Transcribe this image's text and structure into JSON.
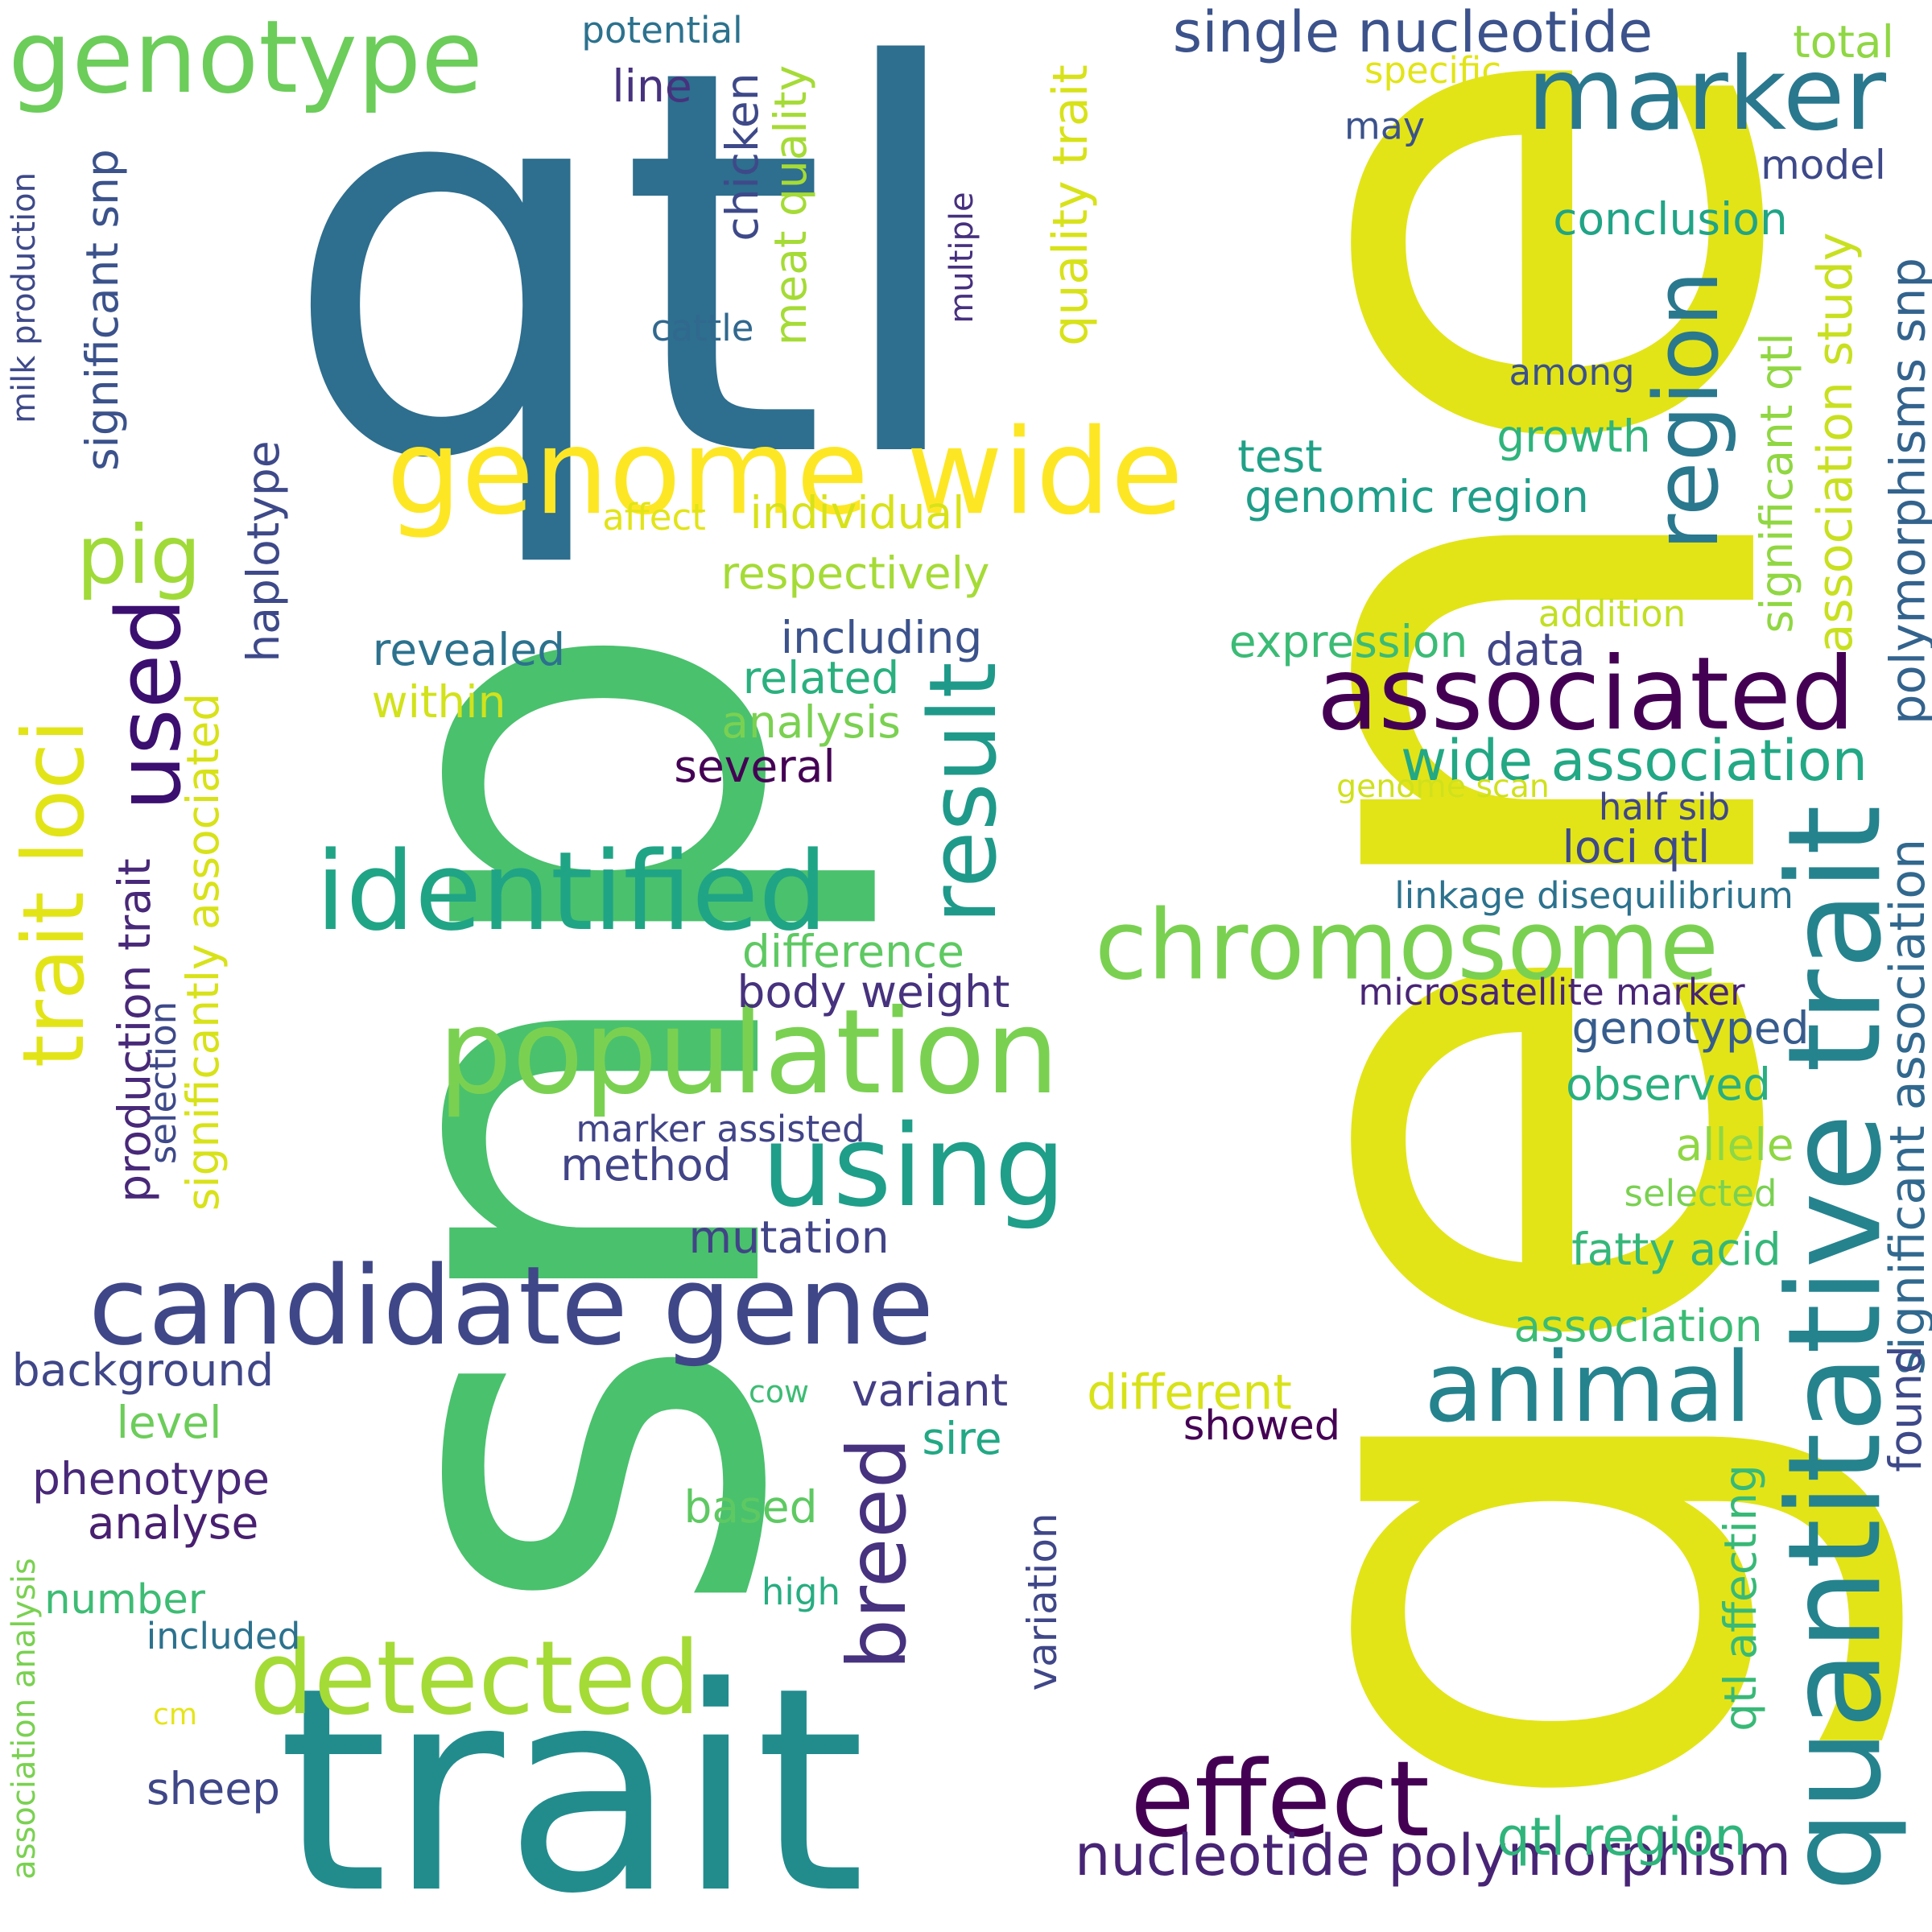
{
  "words": [
    {
      "text": "gene",
      "color": "#e2e418"
    },
    {
      "text": "snp",
      "color": "#4ac16d"
    },
    {
      "text": "qtl",
      "color": "#2e6e8e"
    },
    {
      "text": "trait",
      "color": "#228c8d"
    },
    {
      "text": "genome wide",
      "color": "#fde725"
    },
    {
      "text": "genotype",
      "color": "#6ccd5a"
    },
    {
      "text": "marker",
      "color": "#2a788e"
    },
    {
      "text": "associated",
      "color": "#440154"
    },
    {
      "text": "region",
      "color": "#2a788e"
    },
    {
      "text": "quantitative trait",
      "color": "#25838e"
    },
    {
      "text": "identified",
      "color": "#20a486"
    },
    {
      "text": "population",
      "color": "#7ad151"
    },
    {
      "text": "candidate gene",
      "color": "#3f4788"
    },
    {
      "text": "chromosome",
      "color": "#7ad151"
    },
    {
      "text": "using",
      "color": "#1f9e89"
    },
    {
      "text": "result",
      "color": "#1f9a8a"
    },
    {
      "text": "animal",
      "color": "#25838e"
    },
    {
      "text": "effect",
      "color": "#440154"
    },
    {
      "text": "detected",
      "color": "#a5db36"
    },
    {
      "text": "trait loci",
      "color": "#e2e418"
    },
    {
      "text": "pig",
      "color": "#a0da39"
    },
    {
      "text": "used",
      "color": "#3b0f70"
    },
    {
      "text": "breed",
      "color": "#46327e"
    },
    {
      "text": "single nucleotide",
      "color": "#3b528b"
    },
    {
      "text": "nucleotide polymorphism",
      "color": "#482475"
    },
    {
      "text": "wide association",
      "color": "#22a884"
    },
    {
      "text": "qtl region",
      "color": "#2fb47c"
    },
    {
      "text": "significant association",
      "color": "#31688e"
    },
    {
      "text": "polymorphisms snp",
      "color": "#33638d"
    },
    {
      "text": "association study",
      "color": "#c8e020"
    },
    {
      "text": "significant qtl",
      "color": "#90d743"
    },
    {
      "text": "qtl affecting",
      "color": "#38b977"
    },
    {
      "text": "found",
      "color": "#3e4989"
    },
    {
      "text": "quality trait",
      "color": "#d8e219"
    },
    {
      "text": "meat quality",
      "color": "#a5db36"
    },
    {
      "text": "chicken",
      "color": "#3e4989"
    },
    {
      "text": "significant snp",
      "color": "#3b528b"
    },
    {
      "text": "milk production",
      "color": "#3e4989"
    },
    {
      "text": "haplotype",
      "color": "#3e4989"
    },
    {
      "text": "production trait",
      "color": "#482878"
    },
    {
      "text": "significantly associated",
      "color": "#d8e219"
    },
    {
      "text": "selection",
      "color": "#3e4989"
    },
    {
      "text": "multiple",
      "color": "#46307e"
    },
    {
      "text": "variation",
      "color": "#3f4788"
    },
    {
      "text": "association analysis",
      "color": "#7ad151"
    },
    {
      "text": "potential",
      "color": "#2c728e"
    },
    {
      "text": "line",
      "color": "#46327e"
    },
    {
      "text": "cattle",
      "color": "#31688e"
    },
    {
      "text": "may",
      "color": "#3b528b"
    },
    {
      "text": "total",
      "color": "#8fd744"
    },
    {
      "text": "specific",
      "color": "#e2e418"
    },
    {
      "text": "model",
      "color": "#3e4989"
    },
    {
      "text": "conclusion",
      "color": "#20a486"
    },
    {
      "text": "among",
      "color": "#3b528b"
    },
    {
      "text": "growth",
      "color": "#2fb47c"
    },
    {
      "text": "test",
      "color": "#1fa187"
    },
    {
      "text": "genomic region",
      "color": "#1f9e89"
    },
    {
      "text": "affect",
      "color": "#e2e418"
    },
    {
      "text": "individual",
      "color": "#d8e219"
    },
    {
      "text": "respectively",
      "color": "#a5db36"
    },
    {
      "text": "addition",
      "color": "#c2df23"
    },
    {
      "text": "revealed",
      "color": "#2c728e"
    },
    {
      "text": "including",
      "color": "#3b528b"
    },
    {
      "text": "expression",
      "color": "#3bbb75"
    },
    {
      "text": "data",
      "color": "#404688"
    },
    {
      "text": "within",
      "color": "#d2e21b"
    },
    {
      "text": "related",
      "color": "#2ab07f"
    },
    {
      "text": "analysis",
      "color": "#7ad151"
    },
    {
      "text": "several",
      "color": "#440154"
    },
    {
      "text": "genome scan",
      "color": "#d0e11c"
    },
    {
      "text": "half sib",
      "color": "#3f4788"
    },
    {
      "text": "loci qtl",
      "color": "#3e4989"
    },
    {
      "text": "linkage disequilibrium",
      "color": "#2c728e"
    },
    {
      "text": "difference",
      "color": "#5ec962"
    },
    {
      "text": "body weight",
      "color": "#46327e"
    },
    {
      "text": "microsatellite marker",
      "color": "#482475"
    },
    {
      "text": "genotyped",
      "color": "#365c8d"
    },
    {
      "text": "observed",
      "color": "#29af7f"
    },
    {
      "text": "marker assisted",
      "color": "#414487"
    },
    {
      "text": "allele",
      "color": "#8fd744"
    },
    {
      "text": "method",
      "color": "#414487"
    },
    {
      "text": "selected",
      "color": "#7ad151"
    },
    {
      "text": "mutation",
      "color": "#414487"
    },
    {
      "text": "fatty acid",
      "color": "#35b779"
    },
    {
      "text": "background",
      "color": "#3f4788"
    },
    {
      "text": "association",
      "color": "#3bbb75"
    },
    {
      "text": "level",
      "color": "#6ccd5a"
    },
    {
      "text": "variant",
      "color": "#433e85"
    },
    {
      "text": "different",
      "color": "#d8e219"
    },
    {
      "text": "cow",
      "color": "#3dbc74"
    },
    {
      "text": "sire",
      "color": "#22a884"
    },
    {
      "text": "showed",
      "color": "#440154"
    },
    {
      "text": "phenotype",
      "color": "#482878"
    },
    {
      "text": "analyse",
      "color": "#481f70"
    },
    {
      "text": "based",
      "color": "#5ec962"
    },
    {
      "text": "number",
      "color": "#3dbc74"
    },
    {
      "text": "high",
      "color": "#27ad81"
    },
    {
      "text": "included",
      "color": "#2c728e"
    },
    {
      "text": "cm",
      "color": "#e5e419"
    },
    {
      "text": "sheep",
      "color": "#3f4788"
    }
  ]
}
